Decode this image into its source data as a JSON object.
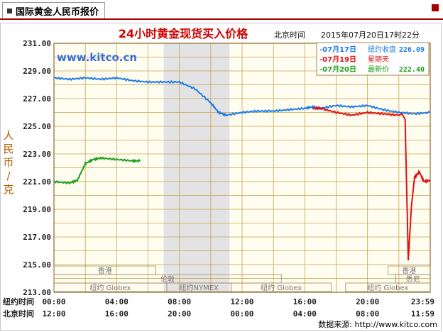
{
  "tab": {
    "label": "国际黄金人民币报价"
  },
  "chart_data": {
    "type": "line",
    "title": "24小时黄金现货买入价格",
    "timestamp_label": "北京时间",
    "timestamp": "2015年07月20日17时22分",
    "watermark": "www.kitco.cn",
    "ylabel": "人民币/克",
    "ylim": [
      213,
      231
    ],
    "yticks": [
      "231.00",
      "229.00",
      "227.00",
      "225.00",
      "223.00",
      "221.00",
      "219.00",
      "217.00",
      "215.00",
      "213.00"
    ],
    "xlim": [
      0,
      24
    ],
    "xticks_ny": [
      "00:00",
      "04:00",
      "08:00",
      "12:00",
      "16:00",
      "20:00",
      "23:59"
    ],
    "xticks_bj": [
      "12:00",
      "16:00",
      "20:00",
      "00:00",
      "04:00",
      "08:00",
      "11:59"
    ],
    "xrow_label_ny": "纽约时间",
    "xrow_label_bj": "北京时间",
    "legend": [
      {
        "date": "07月17日",
        "label": "纽约收盘",
        "value": "226.09",
        "color": "#1e7be6"
      },
      {
        "date": "07月19日",
        "label": "星期天",
        "value": "",
        "color": "#e01010"
      },
      {
        "date": "07月20日",
        "label": "最新价",
        "value": "222.40",
        "color": "#1aa01a"
      }
    ],
    "markets_row1": [
      "香港",
      "香港"
    ],
    "markets_row2": [
      "伦敦",
      "悉尼"
    ],
    "markets_row3": [
      "纽约 Globex",
      "纽约NYMEX",
      "纽约 Globex",
      "纽约 Globex"
    ],
    "series": [
      {
        "date": "07月17日",
        "color": "#1e7be6",
        "x": [
          0,
          1,
          2,
          3,
          4,
          5,
          6,
          7,
          8,
          9,
          10,
          10.5,
          11,
          12,
          13,
          14,
          15,
          16,
          16.5,
          17,
          18,
          19,
          20,
          21,
          22,
          23,
          24
        ],
        "y": [
          228.5,
          228.4,
          228.5,
          228.4,
          228.5,
          228.3,
          228.2,
          228.2,
          228.2,
          227.7,
          226.7,
          226.0,
          225.8,
          226.0,
          226.1,
          226.1,
          226.2,
          226.3,
          226.4,
          226.3,
          226.5,
          226.4,
          226.5,
          226.2,
          226.0,
          225.9,
          226.0
        ]
      },
      {
        "date": "07月19日",
        "color": "#e01010",
        "x": [
          16.5,
          17,
          18,
          19,
          20,
          21,
          22,
          22.2,
          22.4,
          22.6,
          22.8,
          23,
          23.3,
          23.6,
          24
        ],
        "y": [
          226.3,
          226.3,
          226.0,
          225.8,
          226.0,
          225.9,
          225.8,
          225.9,
          225.5,
          215.3,
          219.2,
          221.3,
          221.7,
          221.0,
          221.1
        ]
      },
      {
        "date": "07月20日",
        "color": "#1aa01a",
        "x": [
          0,
          1,
          1.5,
          2,
          2.5,
          3,
          4,
          5,
          5.5
        ],
        "y": [
          221.0,
          220.9,
          221.1,
          222.3,
          222.6,
          222.7,
          222.6,
          222.5,
          222.5
        ]
      }
    ]
  },
  "footer": "数据来源: http://www.kitco.com"
}
